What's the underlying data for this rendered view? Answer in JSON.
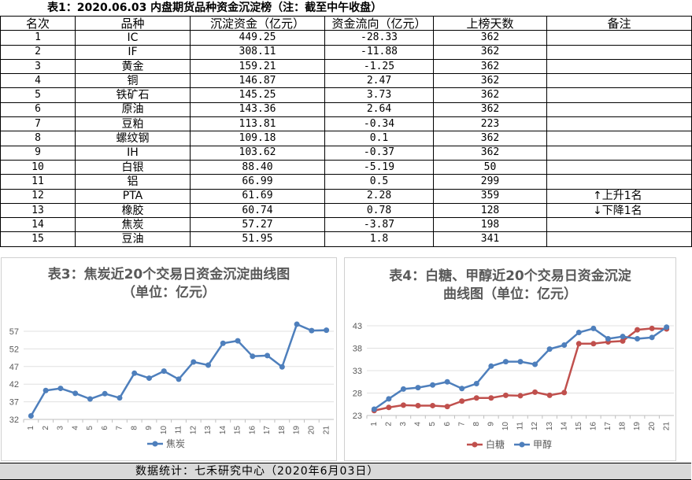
{
  "table": {
    "title": "表1：2020.06.03 内盘期货品种资金沉淀榜（注：截至中午收盘）",
    "headers": [
      "名次",
      "品种",
      "沉淀资金（亿元）",
      "资金流向（亿元）",
      "上榜天数",
      "备注"
    ],
    "rows": [
      [
        "1",
        "IC",
        "449.25",
        "-28.33",
        "362",
        ""
      ],
      [
        "2",
        "IF",
        "308.11",
        "-11.88",
        "362",
        ""
      ],
      [
        "3",
        "黄金",
        "159.21",
        "-1.25",
        "362",
        ""
      ],
      [
        "4",
        "铜",
        "146.87",
        "2.47",
        "362",
        ""
      ],
      [
        "5",
        "铁矿石",
        "145.25",
        "3.73",
        "362",
        ""
      ],
      [
        "6",
        "原油",
        "143.36",
        "2.64",
        "362",
        ""
      ],
      [
        "7",
        "豆粕",
        "113.81",
        "-0.34",
        "223",
        ""
      ],
      [
        "8",
        "螺纹钢",
        "109.18",
        "0.1",
        "362",
        ""
      ],
      [
        "9",
        "IH",
        "103.62",
        "-0.37",
        "362",
        ""
      ],
      [
        "10",
        "白银",
        "88.40",
        "-5.19",
        "50",
        ""
      ],
      [
        "11",
        "铝",
        "66.99",
        "0.5",
        "299",
        ""
      ],
      [
        "12",
        "PTA",
        "61.69",
        "2.28",
        "359",
        "↑上升1名"
      ],
      [
        "13",
        "橡胶",
        "60.74",
        "0.78",
        "128",
        "↓下降1名"
      ],
      [
        "14",
        "焦炭",
        "57.27",
        "-3.87",
        "198",
        ""
      ],
      [
        "15",
        "豆油",
        "51.95",
        "1.8",
        "341",
        ""
      ]
    ]
  },
  "chart_data": [
    {
      "type": "line",
      "title": "表3：焦炭近20个交易日资金沉淀曲线图",
      "subtitle": "（单位：亿元）",
      "x": [
        "1",
        "2",
        "3",
        "4",
        "5",
        "6",
        "7",
        "8",
        "9",
        "10",
        "11",
        "12",
        "13",
        "14",
        "15",
        "16",
        "17",
        "18",
        "19",
        "20",
        "21"
      ],
      "ylim": [
        32,
        57
      ],
      "yticks": [
        32,
        37,
        42,
        47,
        52,
        57
      ],
      "series": [
        {
          "name": "焦炭",
          "color": "#4e7fbc",
          "values": [
            33.0,
            40.2,
            40.8,
            39.4,
            37.8,
            39.3,
            38.1,
            45.1,
            43.7,
            45.7,
            43.4,
            48.3,
            47.4,
            53.6,
            54.3,
            49.9,
            50.1,
            46.9,
            59.0,
            57.2,
            57.3
          ]
        }
      ],
      "legend": "bottom"
    },
    {
      "type": "line",
      "title": "表4：白糖、甲醇近20个交易日资金沉淀",
      "subtitle": "曲线图（单位：亿元）",
      "x": [
        "1",
        "2",
        "3",
        "4",
        "5",
        "6",
        "7",
        "8",
        "9",
        "10",
        "11",
        "12",
        "13",
        "14",
        "15",
        "16",
        "17",
        "18",
        "19",
        "20",
        "21"
      ],
      "ylim": [
        23,
        43
      ],
      "yticks": [
        23,
        28,
        33,
        38,
        43
      ],
      "series": [
        {
          "name": "白糖",
          "color": "#c0504d",
          "values": [
            24.1,
            24.8,
            25.3,
            25.2,
            25.2,
            25.0,
            26.2,
            26.9,
            26.9,
            27.5,
            27.4,
            28.2,
            27.5,
            28.1,
            39.0,
            39.0,
            39.4,
            39.6,
            42.1,
            42.4,
            42.3
          ]
        },
        {
          "name": "甲醇",
          "color": "#4e7fbc",
          "values": [
            24.4,
            26.7,
            28.9,
            29.2,
            29.8,
            30.5,
            29.0,
            30.1,
            34.0,
            35.0,
            35.0,
            34.4,
            37.8,
            38.7,
            41.5,
            42.4,
            40.1,
            40.6,
            40.1,
            40.4,
            42.7
          ]
        }
      ],
      "legend": "bottom"
    }
  ],
  "footer": "数据统计：七禾研究中心（2020年6月03日）"
}
